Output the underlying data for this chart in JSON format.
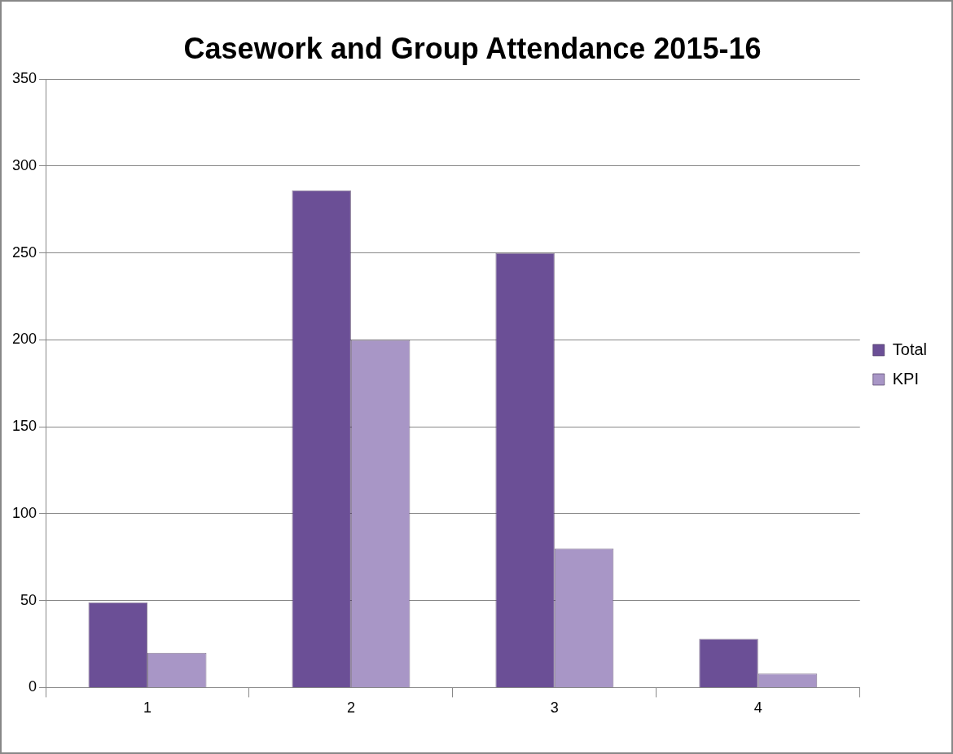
{
  "chart_data": {
    "type": "bar",
    "title": "Casework and Group Attendance 2015-16",
    "categories": [
      "1",
      "2",
      "3",
      "4"
    ],
    "series": [
      {
        "name": "Total",
        "color": "#6b4f96",
        "values": [
          49,
          286,
          250,
          28
        ]
      },
      {
        "name": "KPI",
        "color": "#a896c6",
        "values": [
          20,
          200,
          80,
          8
        ]
      }
    ],
    "ylim": [
      0,
      350
    ],
    "yticks": [
      0,
      50,
      100,
      150,
      200,
      250,
      300,
      350
    ],
    "grid": "y",
    "legend": "right"
  }
}
